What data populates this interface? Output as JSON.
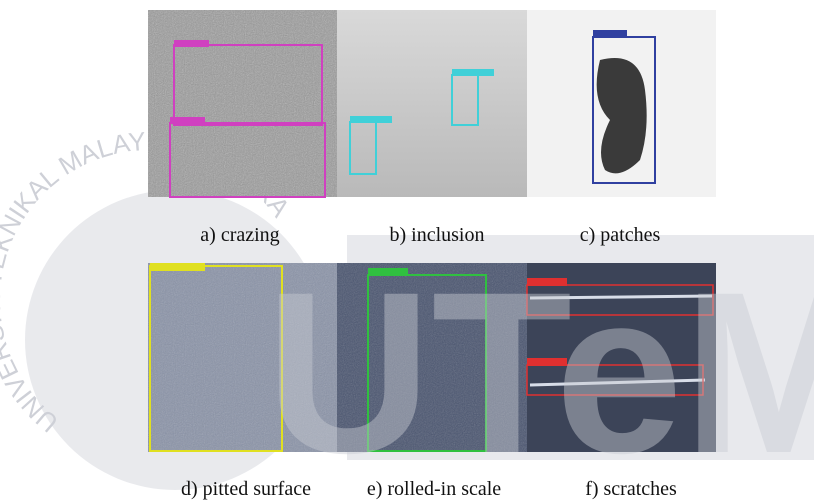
{
  "figure": {
    "panels": [
      {
        "caption": "a) crazing"
      },
      {
        "caption": "b) inclusion"
      },
      {
        "caption": "c) patches"
      },
      {
        "caption": "d) pitted surface"
      },
      {
        "caption": "e) rolled-in scale"
      },
      {
        "caption": "f) scratches"
      }
    ]
  },
  "watermark": {
    "arc_text": "UNIVERSITI TEKNIKAL MALAYSIA MELAKA",
    "logo": "UTeM"
  }
}
